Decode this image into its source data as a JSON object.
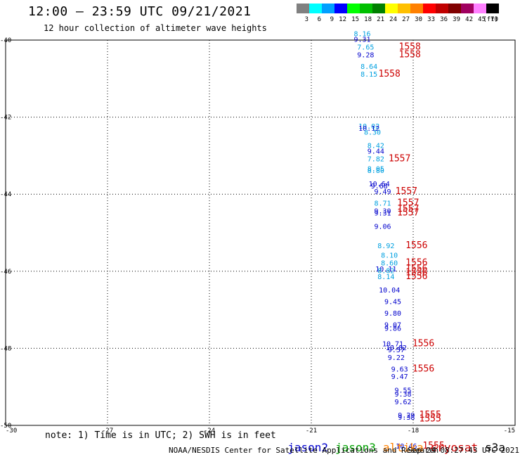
{
  "header": {
    "title": "12:00 – 23:59 UTC 09/21/2021",
    "subtitle": "12 hour collection of altimeter wave heights"
  },
  "colorbar": {
    "unit_label": "(ft)",
    "stops": [
      {
        "label": "3",
        "color": "#808080"
      },
      {
        "label": "6",
        "color": "#00ffff"
      },
      {
        "label": "9",
        "color": "#00a0ff"
      },
      {
        "label": "12",
        "color": "#0000ff"
      },
      {
        "label": "15",
        "color": "#00ff00"
      },
      {
        "label": "18",
        "color": "#00c000"
      },
      {
        "label": "21",
        "color": "#008000"
      },
      {
        "label": "24",
        "color": "#ffff00"
      },
      {
        "label": "27",
        "color": "#ffc000"
      },
      {
        "label": "30",
        "color": "#ff8000"
      },
      {
        "label": "33",
        "color": "#ff0000"
      },
      {
        "label": "36",
        "color": "#c00000"
      },
      {
        "label": "39",
        "color": "#800000"
      },
      {
        "label": "42",
        "color": "#a00060"
      },
      {
        "label": "45",
        "color": "#ff80ff"
      },
      {
        "label": "70",
        "color": "#000000"
      }
    ]
  },
  "chart_data": {
    "type": "scatter",
    "title": "12:00 – 23:59 UTC 09/21/2021",
    "subtitle": "12 hour collection of altimeter wave heights",
    "xlim": [
      -30,
      -15
    ],
    "ylim": [
      -50,
      -40
    ],
    "x_ticks": [
      "-30",
      "-27",
      "-24",
      "-21",
      "-18",
      "-15"
    ],
    "y_ticks": [
      "-40",
      "-42",
      "-44",
      "-46",
      "-48",
      "-50"
    ],
    "grid": "dotted",
    "colors": {
      "jason2": "#0000cc",
      "jason3": "#00a000",
      "altika": "#ff8000",
      "cryosat": "#cc0000",
      "s3a": "#000000",
      "time_label": "#cc0000",
      "swh_light": "#00a0e0",
      "swh_dark": "#0000cc"
    },
    "swh_labels": [
      {
        "x": -19.5,
        "y": -39.9,
        "text": "8.16",
        "color": "#00a0e0"
      },
      {
        "x": -19.5,
        "y": -40.05,
        "text": "9.31",
        "color": "#0000cc"
      },
      {
        "x": -19.4,
        "y": -40.25,
        "text": "7.65",
        "color": "#00a0e0"
      },
      {
        "x": -19.4,
        "y": -40.45,
        "text": "9.28",
        "color": "#0000cc"
      },
      {
        "x": -19.3,
        "y": -40.75,
        "text": "8.64",
        "color": "#00a0e0"
      },
      {
        "x": -19.3,
        "y": -40.95,
        "text": "8.15",
        "color": "#00a0e0"
      },
      {
        "x": -19.3,
        "y": -42.3,
        "text": "10.02",
        "color": "#00a0e0"
      },
      {
        "x": -19.3,
        "y": -42.35,
        "text": "10.12",
        "color": "#0000cc"
      },
      {
        "x": -19.2,
        "y": -42.45,
        "text": "8.30",
        "color": "#00a0e0"
      },
      {
        "x": -19.1,
        "y": -42.8,
        "text": "8.42",
        "color": "#00a0e0"
      },
      {
        "x": -19.1,
        "y": -42.95,
        "text": "9.44",
        "color": "#0000cc"
      },
      {
        "x": -19.1,
        "y": -43.15,
        "text": "7.82",
        "color": "#00a0e0"
      },
      {
        "x": -19.1,
        "y": -43.4,
        "text": "8.05",
        "color": "#00a0e0"
      },
      {
        "x": -19.1,
        "y": -43.45,
        "text": "8.80",
        "color": "#00a0e0"
      },
      {
        "x": -19.0,
        "y": -43.8,
        "text": "10.64",
        "color": "#0000cc"
      },
      {
        "x": -19.0,
        "y": -43.85,
        "text": "9.68",
        "color": "#0000cc"
      },
      {
        "x": -18.9,
        "y": -44.0,
        "text": "9.49",
        "color": "#0000cc"
      },
      {
        "x": -18.9,
        "y": -44.3,
        "text": "8.71",
        "color": "#00a0e0"
      },
      {
        "x": -18.9,
        "y": -44.5,
        "text": "9.30",
        "color": "#0000cc"
      },
      {
        "x": -18.9,
        "y": -44.55,
        "text": "9.31",
        "color": "#0000cc"
      },
      {
        "x": -18.9,
        "y": -44.9,
        "text": "9.06",
        "color": "#0000cc"
      },
      {
        "x": -18.8,
        "y": -45.4,
        "text": "8.92",
        "color": "#00a0e0"
      },
      {
        "x": -18.7,
        "y": -45.65,
        "text": "8.10",
        "color": "#00a0e0"
      },
      {
        "x": -18.7,
        "y": -45.85,
        "text": "8.60",
        "color": "#00a0e0"
      },
      {
        "x": -18.8,
        "y": -46.0,
        "text": "10.11",
        "color": "#0000cc"
      },
      {
        "x": -18.8,
        "y": -46.05,
        "text": "8.82",
        "color": "#00a0e0"
      },
      {
        "x": -18.8,
        "y": -46.2,
        "text": "8.14",
        "color": "#00a0e0"
      },
      {
        "x": -18.7,
        "y": -46.55,
        "text": "10.04",
        "color": "#0000cc"
      },
      {
        "x": -18.6,
        "y": -46.85,
        "text": "9.45",
        "color": "#0000cc"
      },
      {
        "x": -18.6,
        "y": -47.15,
        "text": "9.80",
        "color": "#0000cc"
      },
      {
        "x": -18.6,
        "y": -47.45,
        "text": "9.07",
        "color": "#0000cc"
      },
      {
        "x": -18.6,
        "y": -47.55,
        "text": "9.86",
        "color": "#0000cc"
      },
      {
        "x": -18.6,
        "y": -47.95,
        "text": "10.71",
        "color": "#0000cc"
      },
      {
        "x": -18.5,
        "y": -48.05,
        "text": "10.02",
        "color": "#0000cc"
      },
      {
        "x": -18.5,
        "y": -48.1,
        "text": "9.57",
        "color": "#0000cc"
      },
      {
        "x": -18.5,
        "y": -48.3,
        "text": "9.22",
        "color": "#0000cc"
      },
      {
        "x": -18.4,
        "y": -48.6,
        "text": "9.63",
        "color": "#0000cc"
      },
      {
        "x": -18.4,
        "y": -48.8,
        "text": "9.47",
        "color": "#0000cc"
      },
      {
        "x": -18.3,
        "y": -49.15,
        "text": "9.55",
        "color": "#0000cc"
      },
      {
        "x": -18.3,
        "y": -49.25,
        "text": "9.38",
        "color": "#0000cc"
      },
      {
        "x": -18.3,
        "y": -49.45,
        "text": "9.62",
        "color": "#0000cc"
      },
      {
        "x": -18.2,
        "y": -49.8,
        "text": "9.29",
        "color": "#0000cc"
      },
      {
        "x": -18.2,
        "y": -49.85,
        "text": "9.38",
        "color": "#0000cc"
      },
      {
        "x": -18.2,
        "y": -50.6,
        "text": "10.46",
        "color": "#0000cc"
      }
    ],
    "time_labels": [
      {
        "x": -18.1,
        "y": -40.25,
        "text": "1558"
      },
      {
        "x": -18.1,
        "y": -40.45,
        "text": "1558"
      },
      {
        "x": -18.7,
        "y": -40.95,
        "text": "1558"
      },
      {
        "x": -18.4,
        "y": -43.15,
        "text": "1557"
      },
      {
        "x": -18.2,
        "y": -44.0,
        "text": "1557"
      },
      {
        "x": -18.15,
        "y": -44.3,
        "text": "1557"
      },
      {
        "x": -18.15,
        "y": -44.45,
        "text": "1557"
      },
      {
        "x": -18.15,
        "y": -44.55,
        "text": "1557"
      },
      {
        "x": -17.9,
        "y": -45.4,
        "text": "1556"
      },
      {
        "x": -17.9,
        "y": -45.85,
        "text": "1556"
      },
      {
        "x": -17.9,
        "y": -46.0,
        "text": "1556"
      },
      {
        "x": -17.9,
        "y": -46.1,
        "text": "1556"
      },
      {
        "x": -17.9,
        "y": -46.2,
        "text": "1556"
      },
      {
        "x": -17.7,
        "y": -47.95,
        "text": "1556"
      },
      {
        "x": -17.7,
        "y": -48.6,
        "text": "1556"
      },
      {
        "x": -17.5,
        "y": -49.8,
        "text": "1555"
      },
      {
        "x": -17.5,
        "y": -49.9,
        "text": "1555"
      },
      {
        "x": -17.4,
        "y": -50.6,
        "text": "1555"
      }
    ]
  },
  "footer": {
    "note": "note: 1) Time is in UTC; 2) SWH is in feet",
    "legend": [
      {
        "label": "jason2",
        "color": "#0000cc"
      },
      {
        "label": "jason3",
        "color": "#00a000"
      },
      {
        "label": "altika",
        "color": "#ff8000"
      },
      {
        "label": "cryosat",
        "color": "#cc0000"
      },
      {
        "label": "s3a",
        "color": "#000000"
      }
    ],
    "credit": "NOAA/NESDIS Center for Satellite Applications and Research",
    "timestamp": "Sep 24 08:27:43 UTC 2021"
  }
}
